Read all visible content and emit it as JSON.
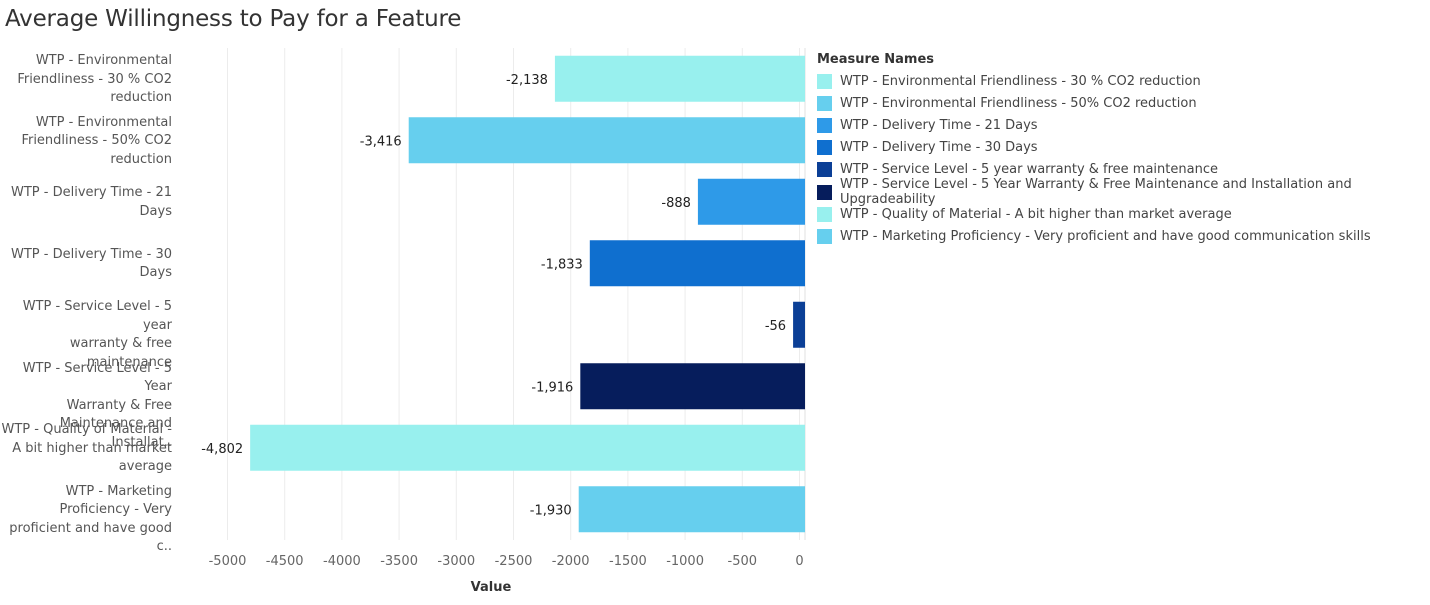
{
  "chart_data": {
    "type": "bar",
    "orientation": "horizontal",
    "title": "Average Willingness to Pay for a Feature",
    "xlabel": "Value",
    "ylabel": "",
    "xlim": [
      -5300,
      0
    ],
    "x_ticks": [
      -5000,
      -4500,
      -4000,
      -3500,
      -3000,
      -2500,
      -2000,
      -1500,
      -1000,
      -500,
      0
    ],
    "grid": true,
    "legend_position": "right",
    "legend_title": "Measure Names",
    "categories": [
      "WTP - Environmental Friendliness - 30 % CO2 reduction",
      "WTP - Environmental Friendliness - 50% CO2 reduction",
      "WTP - Delivery Time - 21 Days",
      "WTP - Delivery Time -  30 Days",
      "WTP - Service Level - 5 year warranty & free maintenance",
      "WTP - Service Level - 5 Year Warranty & Free Maintenance and Installation and Upgradeability",
      "WTP - Quality of Material - A bit higher than market average",
      "WTP - Marketing Proficiency - Very proficient and have good communication skills"
    ],
    "category_labels": [
      [
        "WTP - Environmental",
        "Friendliness - 30 % CO2",
        "reduction"
      ],
      [
        "WTP - Environmental",
        "Friendliness - 50% CO2",
        "reduction"
      ],
      [
        "WTP - Delivery Time - 21",
        "Days"
      ],
      [
        "WTP - Delivery Time -  30",
        "Days"
      ],
      [
        "WTP - Service Level - 5 year",
        "warranty & free",
        "maintenance"
      ],
      [
        "WTP - Service Level - 5 Year",
        "Warranty & Free",
        "Maintenance and Installat.."
      ],
      [
        "WTP - Quality of Material -",
        "A bit higher than market",
        "average"
      ],
      [
        "WTP - Marketing",
        "Proficiency - Very",
        "proficient and have good c.."
      ]
    ],
    "values": [
      -2138,
      -3416,
      -888,
      -1833,
      -56,
      -1916,
      -4802,
      -1930
    ],
    "value_labels": [
      "-2,138",
      "-3,416",
      "-888",
      "-1,833",
      "-56",
      "-1,916",
      "-4,802",
      "-1,930"
    ],
    "colors": [
      "#98f0ee",
      "#66cfee",
      "#2e9ae8",
      "#0f6fcf",
      "#0b3f96",
      "#061d5c",
      "#98f0ee",
      "#66cfee"
    ]
  }
}
